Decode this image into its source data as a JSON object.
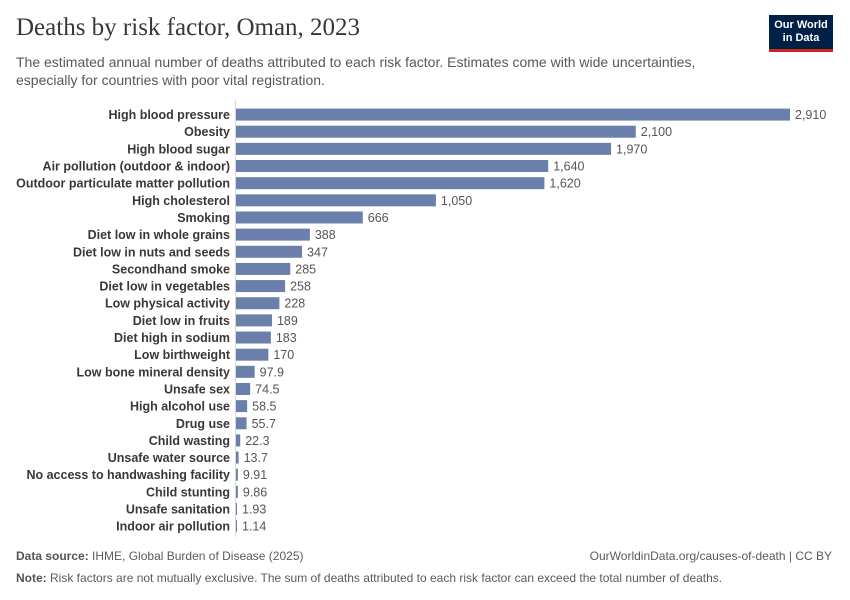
{
  "header": {
    "title": "Deaths by risk factor, Oman, 2023",
    "subtitle": "The estimated annual number of deaths attributed to each risk factor. Estimates come with wide uncertainties, especially for countries with poor vital registration.",
    "logo_line1": "Our World",
    "logo_line2": "in Data"
  },
  "footer": {
    "source_label": "Data source:",
    "source_text": "IHME, Global Burden of Disease (2025)",
    "credit": "OurWorldinData.org/causes-of-death | CC BY",
    "note_label": "Note:",
    "note_text": "Risk factors are not mutually exclusive. The sum of deaths attributed to each risk factor can exceed the total number of deaths."
  },
  "colors": {
    "bar": "#6b7fad",
    "label": "#383838",
    "value": "#555555",
    "axis": "#d9d9d9"
  },
  "chart_data": {
    "type": "bar",
    "orientation": "horizontal",
    "categories": [
      "High blood pressure",
      "Obesity",
      "High blood sugar",
      "Air pollution (outdoor & indoor)",
      "Outdoor particulate matter pollution",
      "High cholesterol",
      "Smoking",
      "Diet low in whole grains",
      "Diet low in nuts and seeds",
      "Secondhand smoke",
      "Diet low in vegetables",
      "Low physical activity",
      "Diet low in fruits",
      "Diet high in sodium",
      "Low birthweight",
      "Low bone mineral density",
      "Unsafe sex",
      "High alcohol use",
      "Drug use",
      "Child wasting",
      "Unsafe water source",
      "No access to handwashing facility",
      "Child stunting",
      "Unsafe sanitation",
      "Indoor air pollution"
    ],
    "values": [
      2910,
      2100,
      1970,
      1640,
      1620,
      1050,
      666,
      388,
      347,
      285,
      258,
      228,
      189,
      183,
      170,
      97.9,
      74.5,
      58.5,
      55.7,
      22.3,
      13.7,
      9.91,
      9.86,
      1.93,
      1.14
    ],
    "value_labels": [
      "2,910",
      "2,100",
      "1,970",
      "1,640",
      "1,620",
      "1,050",
      "666",
      "388",
      "347",
      "285",
      "258",
      "228",
      "189",
      "183",
      "170",
      "97.9",
      "74.5",
      "58.5",
      "55.7",
      "22.3",
      "13.7",
      "9.91",
      "9.86",
      "1.93",
      "1.14"
    ],
    "xlim": [
      0,
      2910
    ],
    "grid": false
  }
}
